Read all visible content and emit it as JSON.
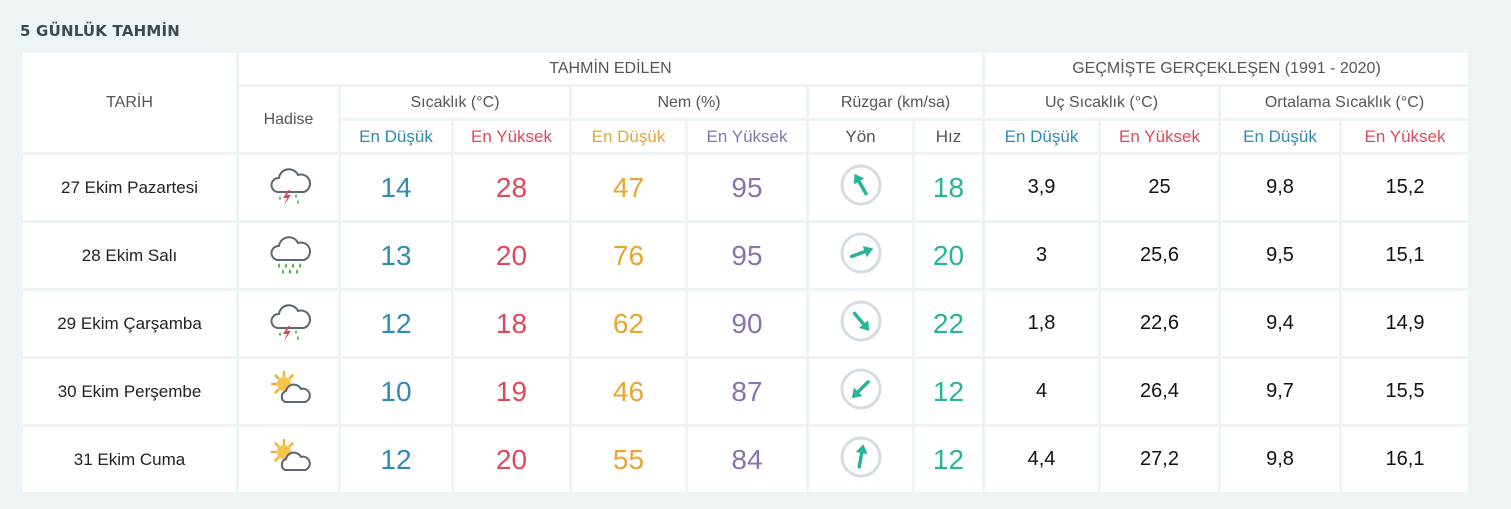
{
  "title": "5 GÜNLÜK TAHMİN",
  "headers": {
    "tarih": "TARİH",
    "tahmin_edilen": "TAHMİN EDİLEN",
    "gecmiste": "GEÇMİŞTE GERÇEKLEŞEN (1991 - 2020)",
    "hadise": "Hadise",
    "sicaklik": "Sıcaklık (°C)",
    "nem": "Nem (%)",
    "ruzgar": "Rüzgar (km/sa)",
    "uc_sicaklik": "Uç Sıcaklık (°C)",
    "ortalama_sicaklik": "Ortalama Sıcaklık (°C)",
    "en_dusuk": "En Düşük",
    "en_yuksek": "En Yüksek",
    "yon": "Yön",
    "hiz": "Hız"
  },
  "colors": {
    "min": "#2f8bb3",
    "max": "#e0475b",
    "humidity_min": "#e9a530",
    "humidity_max": "#8a72b0",
    "wind": "#29b39c"
  },
  "rows": [
    {
      "date": "27 Ekim Pazartesi",
      "icon": "thunderstorm-rain-icon",
      "temp_min": "14",
      "temp_max": "28",
      "hum_min": "47",
      "hum_max": "95",
      "wind_dir_deg": -30,
      "wind_speed": "18",
      "ext_min": "3,9",
      "ext_max": "25",
      "avg_min": "9,8",
      "avg_max": "15,2"
    },
    {
      "date": "28 Ekim Salı",
      "icon": "heavy-rain-icon",
      "temp_min": "13",
      "temp_max": "20",
      "hum_min": "76",
      "hum_max": "95",
      "wind_dir_deg": 70,
      "wind_speed": "20",
      "ext_min": "3",
      "ext_max": "25,6",
      "avg_min": "9,5",
      "avg_max": "15,1"
    },
    {
      "date": "29 Ekim Çarşamba",
      "icon": "thunderstorm-rain-icon",
      "temp_min": "12",
      "temp_max": "18",
      "hum_min": "62",
      "hum_max": "90",
      "wind_dir_deg": 140,
      "wind_speed": "22",
      "ext_min": "1,8",
      "ext_max": "22,6",
      "avg_min": "9,4",
      "avg_max": "14,9"
    },
    {
      "date": "30 Ekim Perşembe",
      "icon": "partly-cloudy-icon",
      "temp_min": "10",
      "temp_max": "19",
      "hum_min": "46",
      "hum_max": "87",
      "wind_dir_deg": -135,
      "wind_speed": "12",
      "ext_min": "4",
      "ext_max": "26,4",
      "avg_min": "9,7",
      "avg_max": "15,5"
    },
    {
      "date": "31 Ekim Cuma",
      "icon": "partly-cloudy-icon",
      "temp_min": "12",
      "temp_max": "20",
      "hum_min": "55",
      "hum_max": "84",
      "wind_dir_deg": 10,
      "wind_speed": "12",
      "ext_min": "4,4",
      "ext_max": "27,2",
      "avg_min": "9,8",
      "avg_max": "16,1"
    }
  ]
}
